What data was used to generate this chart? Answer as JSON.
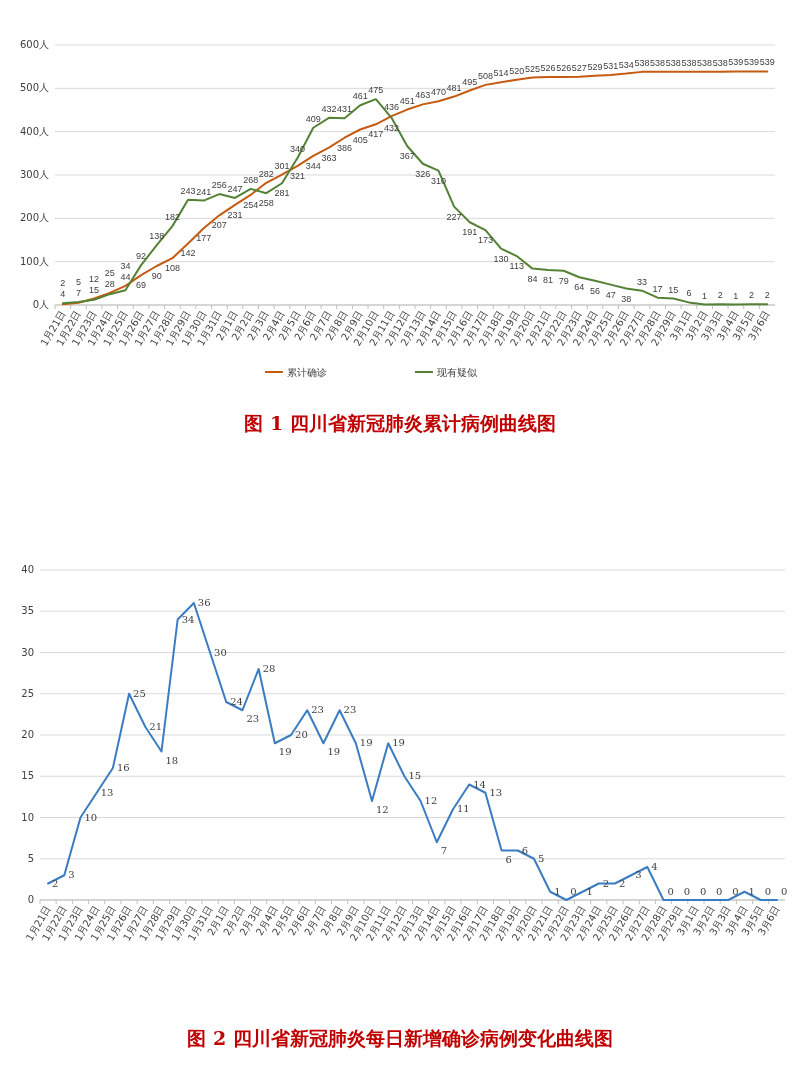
{
  "chart_data": [
    {
      "type": "line",
      "title": "图 1   四川省新冠肺炎累计病例曲线图",
      "categories": [
        "1月21日",
        "1月22日",
        "1月23日",
        "1月24日",
        "1月25日",
        "1月26日",
        "1月27日",
        "1月28日",
        "1月29日",
        "1月30日",
        "1月31日",
        "2月1日",
        "2月2日",
        "2月3日",
        "2月4日",
        "2月5日",
        "2月6日",
        "2月7日",
        "2月8日",
        "2月9日",
        "2月10日",
        "2月11日",
        "2月12日",
        "2月13日",
        "2月14日",
        "2月15日",
        "2月16日",
        "2月17日",
        "2月18日",
        "2月19日",
        "2月20日",
        "2月21日",
        "2月22日",
        "2月23日",
        "2月24日",
        "2月25日",
        "2月26日",
        "2月27日",
        "2月28日",
        "2月29日",
        "3月1日",
        "3月2日",
        "3月3日",
        "3月4日",
        "3月5日",
        "3月6日"
      ],
      "series": [
        {
          "name": "累计确诊",
          "color": "#c55a11",
          "values": [
            2,
            5,
            15,
            28,
            44,
            69,
            90,
            108,
            142,
            177,
            207,
            231,
            254,
            282,
            301,
            321,
            344,
            363,
            386,
            405,
            417,
            436,
            451,
            463,
            470,
            481,
            495,
            508,
            514,
            520,
            525,
            526,
            526,
            527,
            529,
            531,
            534,
            538,
            538,
            538,
            538,
            538,
            538,
            539,
            539,
            539
          ]
        },
        {
          "name": "现有疑似",
          "color": "#548235",
          "values": [
            4,
            7,
            12,
            25,
            34,
            92,
            138,
            182,
            243,
            241,
            256,
            247,
            268,
            258,
            281,
            340,
            409,
            432,
            431,
            461,
            475,
            432,
            367,
            326,
            310,
            227,
            191,
            173,
            130,
            113,
            84,
            81,
            79,
            64,
            56,
            47,
            38,
            33,
            17,
            15,
            6,
            1,
            2,
            1,
            2,
            2
          ]
        }
      ],
      "ylim": [
        0,
        600
      ],
      "yticks": [
        {
          "value": 0,
          "label": "0人"
        },
        {
          "value": 100,
          "label": "100人"
        },
        {
          "value": 200,
          "label": "200人"
        },
        {
          "value": 300,
          "label": "300人"
        },
        {
          "value": 400,
          "label": "400人"
        },
        {
          "value": 500,
          "label": "500人"
        },
        {
          "value": 600,
          "label": "600人"
        }
      ],
      "grid": "y",
      "legend": "bottom",
      "data_labels": true,
      "marker": "none"
    },
    {
      "type": "line",
      "title": "图 2   四川省新冠肺炎每日新增确诊病例变化曲线图",
      "categories": [
        "1月21日",
        "1月22日",
        "1月23日",
        "1月24日",
        "1月25日",
        "1月26日",
        "1月27日",
        "1月28日",
        "1月29日",
        "1月30日",
        "1月31日",
        "2月1日",
        "2月2日",
        "2月3日",
        "2月4日",
        "2月5日",
        "2月6日",
        "2月7日",
        "2月8日",
        "2月9日",
        "2月10日",
        "2月11日",
        "2月12日",
        "2月13日",
        "2月14日",
        "2月15日",
        "2月16日",
        "2月17日",
        "2月18日",
        "2月19日",
        "2月20日",
        "2月21日",
        "2月22日",
        "2月23日",
        "2月24日",
        "2月25日",
        "2月26日",
        "2月27日",
        "2月28日",
        "2月29日",
        "3月1日",
        "3月2日",
        "3月3日",
        "3月4日",
        "3月5日",
        "3月6日"
      ],
      "series": [
        {
          "color": "#3a7cc1",
          "values": [
            2,
            3,
            10,
            13,
            16,
            25,
            21,
            18,
            34,
            36,
            30,
            24,
            23,
            28,
            19,
            20,
            23,
            19,
            23,
            19,
            12,
            19,
            15,
            12,
            7,
            11,
            14,
            13,
            6,
            6,
            5,
            1,
            0,
            1,
            2,
            2,
            3,
            4,
            0,
            0,
            0,
            0,
            0,
            1,
            0,
            0
          ]
        }
      ],
      "ylim": [
        0,
        40
      ],
      "yticks": [
        0,
        5,
        10,
        15,
        20,
        25,
        30,
        35,
        40
      ],
      "grid": "y",
      "data_labels": true,
      "marker": "none"
    }
  ]
}
